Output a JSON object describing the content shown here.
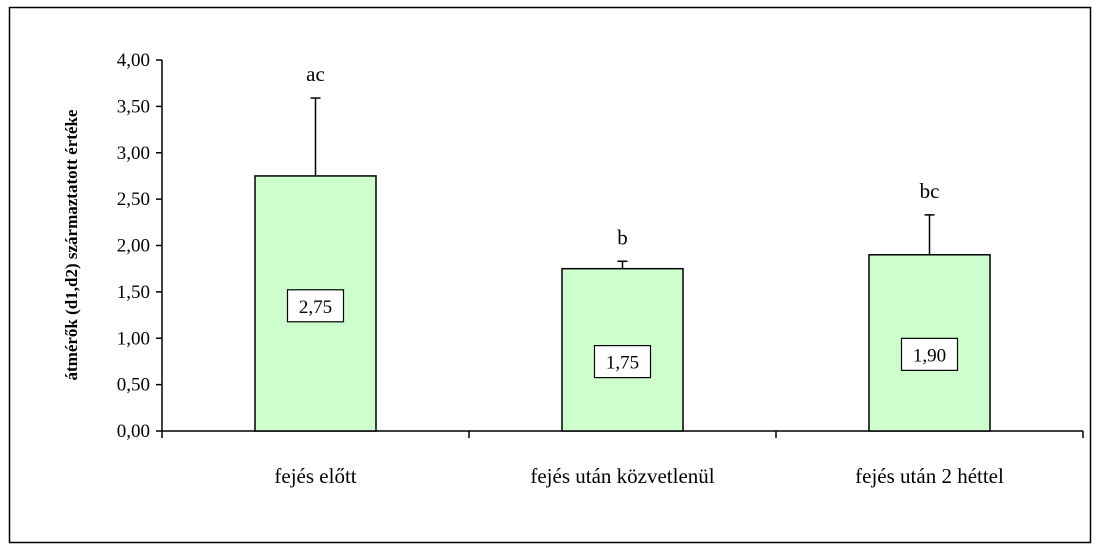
{
  "chart_data": {
    "type": "bar",
    "ylabel": "átmérők (d1,d2) származtatott értéke",
    "xlabel": "",
    "ylim": [
      0,
      4
    ],
    "y_ticks": [
      "0,00",
      "0,50",
      "1,00",
      "1,50",
      "2,00",
      "2,50",
      "3,00",
      "3,50",
      "4,00"
    ],
    "categories": [
      "fejés előtt",
      "fejés után közvetlenül",
      "fejés után 2 héttel"
    ],
    "values": [
      2.75,
      1.75,
      1.9
    ],
    "value_labels": [
      "2,75",
      "1,75",
      "1,90"
    ],
    "error_upper": [
      3.59,
      1.83,
      2.33
    ],
    "significance_labels": [
      "ac",
      "b",
      "bc"
    ],
    "bar_color": "#ccffcc",
    "grid": false,
    "legend": "none"
  }
}
